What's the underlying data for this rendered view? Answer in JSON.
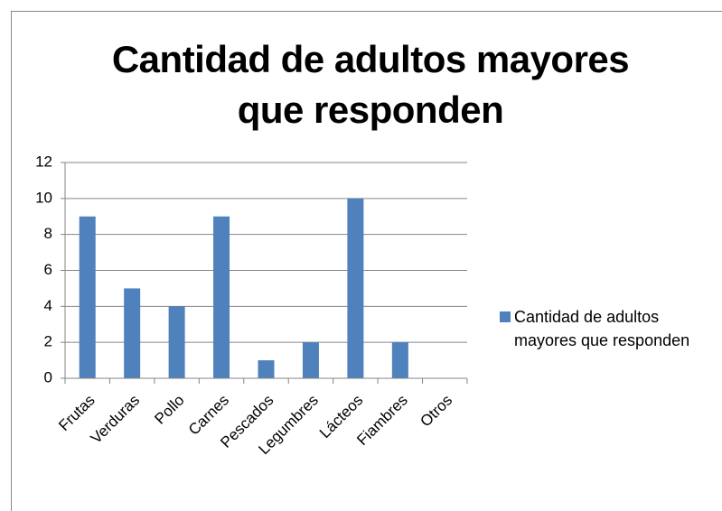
{
  "chart_data": {
    "type": "bar",
    "title": "Cantidad de adultos mayores que responden",
    "categories": [
      "Frutas",
      "Verduras",
      "Pollo",
      "Carnes",
      "Pescados",
      "Legumbres",
      "Lácteos",
      "Fiambres",
      "Otros"
    ],
    "series": [
      {
        "name": "Cantidad de adultos mayores que responden",
        "color": "#4f81bd",
        "values": [
          9,
          5,
          4,
          9,
          1,
          2,
          10,
          2,
          0
        ]
      }
    ],
    "ylim": [
      0,
      12
    ],
    "yticks": [
      0,
      2,
      4,
      6,
      8,
      10,
      12
    ],
    "grid": true,
    "legend": "right"
  }
}
